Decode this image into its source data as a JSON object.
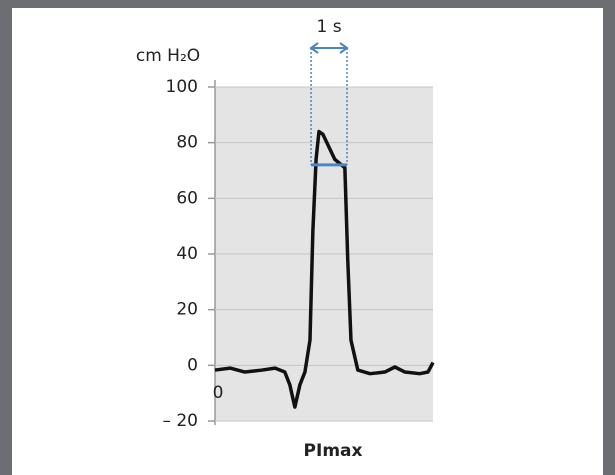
{
  "chart_data": {
    "type": "line",
    "title": "PImax",
    "y_label": "cm H₂O",
    "x": [
      0,
      0.42,
      0.83,
      1.31,
      1.67,
      1.94,
      2.08,
      2.22,
      2.36,
      2.5,
      2.64,
      2.72,
      2.81,
      2.89,
      3.0,
      3.33,
      3.61,
      3.69,
      3.78,
      3.97,
      4.31,
      4.72,
      5.0,
      5.28,
      5.69,
      5.92,
      6.06
    ],
    "series": [
      {
        "color": "#111111",
        "values": [
          -1.7,
          -1,
          -2.4,
          -1.7,
          -1,
          -2.4,
          -7,
          -15,
          -7,
          -2.4,
          9,
          48,
          74,
          84,
          83,
          74,
          71,
          38,
          9,
          -1.7,
          -3,
          -2.4,
          -0.6,
          -2.4,
          -3,
          -2.4,
          1
        ]
      }
    ],
    "xlim": [
      0,
      6.06
    ],
    "xticks": [
      0
    ],
    "ylim": [
      -20,
      100
    ],
    "yticks": [
      {
        "value": -20,
        "label": "– 20"
      },
      0,
      20,
      40,
      60,
      80,
      100
    ],
    "grid": true,
    "reference_line": {
      "y": 72,
      "x": [
        2.67,
        3.67
      ],
      "color": "#4a86c5"
    },
    "annotation": {
      "text": "1 s",
      "x": [
        2.67,
        3.67
      ],
      "color": "#4a86c5"
    }
  }
}
